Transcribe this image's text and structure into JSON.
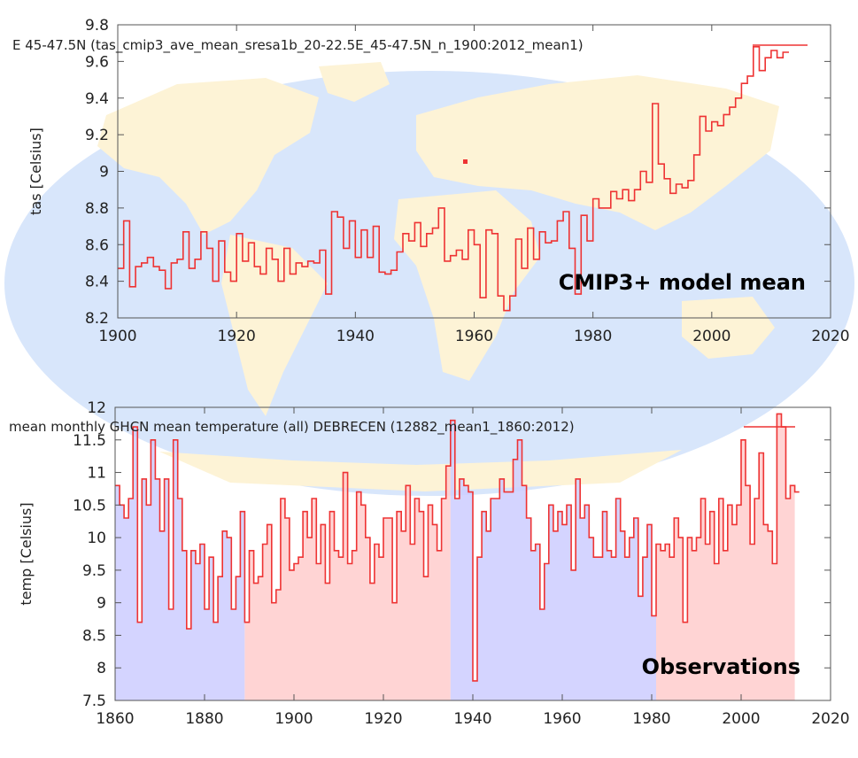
{
  "colors": {
    "line": "#ee3333",
    "cold_fill": "#ccccff",
    "warm_fill": "#ffcccc",
    "ocean": "#d8e6fb",
    "land": "#fdf3d6",
    "frame": "#555555"
  },
  "chart_data": [
    {
      "type": "line",
      "title": "",
      "legend": "E 45-47.5N (tas_cmip3_ave_mean_sresa1b_20-22.5E_45-47.5N_n_1900:2012_mean1)",
      "legend_position": "top-right",
      "xlabel": "",
      "ylabel": "tas [Celsius]",
      "xlim": [
        1900,
        2020
      ],
      "ylim": [
        8.2,
        9.8
      ],
      "xticks": [
        1900,
        1920,
        1940,
        1960,
        1980,
        2000,
        2020
      ],
      "yticks": [
        8.2,
        8.4,
        8.6,
        8.8,
        9,
        9.2,
        9.4,
        9.6,
        9.8
      ],
      "annotation": "CMIP3+ model mean",
      "series": [
        {
          "name": "tas_cmip3_ave_mean_sresa1b",
          "x": [
            1900,
            1901,
            1902,
            1903,
            1904,
            1905,
            1906,
            1907,
            1908,
            1909,
            1910,
            1911,
            1912,
            1913,
            1914,
            1915,
            1916,
            1917,
            1918,
            1919,
            1920,
            1921,
            1922,
            1923,
            1924,
            1925,
            1926,
            1927,
            1928,
            1929,
            1930,
            1931,
            1932,
            1933,
            1934,
            1935,
            1936,
            1937,
            1938,
            1939,
            1940,
            1941,
            1942,
            1943,
            1944,
            1945,
            1946,
            1947,
            1948,
            1949,
            1950,
            1951,
            1952,
            1953,
            1954,
            1955,
            1956,
            1957,
            1958,
            1959,
            1960,
            1961,
            1962,
            1963,
            1964,
            1965,
            1966,
            1967,
            1968,
            1969,
            1970,
            1971,
            1972,
            1973,
            1974,
            1975,
            1976,
            1977,
            1978,
            1979,
            1980,
            1981,
            1982,
            1983,
            1984,
            1985,
            1986,
            1987,
            1988,
            1989,
            1990,
            1991,
            1992,
            1993,
            1994,
            1995,
            1996,
            1997,
            1998,
            1999,
            2000,
            2001,
            2002,
            2003,
            2004,
            2005,
            2006,
            2007,
            2008,
            2009,
            2010,
            2011,
            2012
          ],
          "values": [
            8.47,
            8.73,
            8.37,
            8.48,
            8.5,
            8.53,
            8.48,
            8.46,
            8.36,
            8.5,
            8.52,
            8.67,
            8.47,
            8.52,
            8.67,
            8.58,
            8.4,
            8.62,
            8.45,
            8.4,
            8.66,
            8.51,
            8.61,
            8.48,
            8.44,
            8.58,
            8.52,
            8.4,
            8.58,
            8.44,
            8.5,
            8.48,
            8.51,
            8.5,
            8.57,
            8.33,
            8.78,
            8.75,
            8.58,
            8.73,
            8.53,
            8.68,
            8.53,
            8.7,
            8.45,
            8.44,
            8.46,
            8.56,
            8.66,
            8.62,
            8.72,
            8.59,
            8.66,
            8.69,
            8.8,
            8.51,
            8.54,
            8.57,
            8.52,
            8.68,
            8.6,
            8.31,
            8.68,
            8.66,
            8.32,
            8.24,
            8.32,
            8.63,
            8.47,
            8.69,
            8.52,
            8.67,
            8.61,
            8.62,
            8.73,
            8.78,
            8.58,
            8.33,
            8.76,
            8.62,
            8.85,
            8.8,
            8.8,
            8.89,
            8.85,
            8.9,
            8.84,
            8.9,
            9.0,
            8.94,
            9.37,
            9.04,
            8.96,
            8.88,
            8.93,
            8.91,
            8.95,
            9.09,
            9.3,
            9.22,
            9.27,
            9.25,
            9.31,
            9.35,
            9.4,
            9.48,
            9.52,
            9.68,
            9.55,
            9.62,
            9.66,
            9.62,
            9.65
          ]
        }
      ]
    },
    {
      "type": "area",
      "title": "",
      "legend": "mean monthly GHCN mean temperature (all) DEBRECEN (12882_mean1_1860:2012)",
      "legend_position": "top-right",
      "xlabel": "",
      "ylabel": "temp [Celsius]",
      "xlim": [
        1860,
        2020
      ],
      "ylim": [
        7.5,
        12
      ],
      "xticks": [
        1860,
        1880,
        1900,
        1920,
        1940,
        1960,
        1980,
        2000,
        2020
      ],
      "yticks": [
        7.5,
        8,
        8.5,
        9,
        9.5,
        10,
        10.5,
        11,
        11.5,
        12
      ],
      "annotation": "Observations",
      "shaded_periods": [
        {
          "from": 1860,
          "to": 1889,
          "tone": "cold"
        },
        {
          "from": 1889,
          "to": 1935,
          "tone": "warm"
        },
        {
          "from": 1935,
          "to": 1981,
          "tone": "cold"
        },
        {
          "from": 1981,
          "to": 2012,
          "tone": "warm"
        }
      ],
      "series": [
        {
          "name": "DEBRECEN",
          "x": [
            1860,
            1861,
            1862,
            1863,
            1864,
            1865,
            1866,
            1867,
            1868,
            1869,
            1870,
            1871,
            1872,
            1873,
            1874,
            1875,
            1876,
            1877,
            1878,
            1879,
            1880,
            1881,
            1882,
            1883,
            1884,
            1885,
            1886,
            1887,
            1888,
            1889,
            1890,
            1891,
            1892,
            1893,
            1894,
            1895,
            1896,
            1897,
            1898,
            1899,
            1900,
            1901,
            1902,
            1903,
            1904,
            1905,
            1906,
            1907,
            1908,
            1909,
            1910,
            1911,
            1912,
            1913,
            1914,
            1915,
            1916,
            1917,
            1918,
            1919,
            1920,
            1921,
            1922,
            1923,
            1924,
            1925,
            1926,
            1927,
            1928,
            1929,
            1930,
            1931,
            1932,
            1933,
            1934,
            1935,
            1936,
            1937,
            1938,
            1939,
            1940,
            1941,
            1942,
            1943,
            1944,
            1945,
            1946,
            1947,
            1948,
            1949,
            1950,
            1951,
            1952,
            1953,
            1954,
            1955,
            1956,
            1957,
            1958,
            1959,
            1960,
            1961,
            1962,
            1963,
            1964,
            1965,
            1966,
            1967,
            1968,
            1969,
            1970,
            1971,
            1972,
            1973,
            1974,
            1975,
            1976,
            1977,
            1978,
            1979,
            1980,
            1981,
            1982,
            1983,
            1984,
            1985,
            1986,
            1987,
            1988,
            1989,
            1990,
            1991,
            1992,
            1993,
            1994,
            1995,
            1996,
            1997,
            1998,
            1999,
            2000,
            2001,
            2002,
            2003,
            2004,
            2005,
            2006,
            2007,
            2008,
            2009,
            2010,
            2011,
            2012
          ],
          "values": [
            10.8,
            10.5,
            10.3,
            10.6,
            11.7,
            8.7,
            10.9,
            10.5,
            11.5,
            10.9,
            10.1,
            10.9,
            8.9,
            11.5,
            10.6,
            9.8,
            8.6,
            9.8,
            9.6,
            9.9,
            8.9,
            9.7,
            8.7,
            9.4,
            10.1,
            10.0,
            8.9,
            9.4,
            10.4,
            8.7,
            9.8,
            9.3,
            9.4,
            9.9,
            10.2,
            9.0,
            9.2,
            10.6,
            10.3,
            9.5,
            9.6,
            9.7,
            10.4,
            10.0,
            10.6,
            9.6,
            10.2,
            9.3,
            10.4,
            9.8,
            9.7,
            11.0,
            9.6,
            9.8,
            10.7,
            10.5,
            10.0,
            9.3,
            9.9,
            9.7,
            10.3,
            10.3,
            9.0,
            10.4,
            10.1,
            10.8,
            9.9,
            10.6,
            10.4,
            9.4,
            10.5,
            10.2,
            9.8,
            10.6,
            11.1,
            11.8,
            10.6,
            10.9,
            10.8,
            10.7,
            7.8,
            9.7,
            10.4,
            10.1,
            10.6,
            10.6,
            10.9,
            10.7,
            10.7,
            11.2,
            11.5,
            10.8,
            10.3,
            9.8,
            9.9,
            8.9,
            9.6,
            10.5,
            10.1,
            10.4,
            10.2,
            10.5,
            9.5,
            10.9,
            10.3,
            10.5,
            10.0,
            9.7,
            9.7,
            10.4,
            9.8,
            9.7,
            10.6,
            10.1,
            9.7,
            10.0,
            10.3,
            9.1,
            9.7,
            10.2,
            8.8,
            9.9,
            9.8,
            9.9,
            9.7,
            10.3,
            10.0,
            8.7,
            10.0,
            9.8,
            10.0,
            10.6,
            9.9,
            10.4,
            9.6,
            10.6,
            9.8,
            10.5,
            10.2,
            10.5,
            11.5,
            10.8,
            9.9,
            10.6,
            11.3,
            10.2,
            10.1,
            9.6,
            11.9,
            11.7,
            10.6,
            10.8,
            10.7
          ]
        }
      ]
    }
  ]
}
